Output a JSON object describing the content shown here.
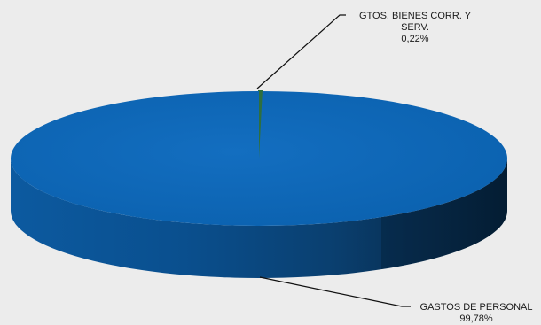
{
  "chart_data": {
    "type": "pie",
    "style": "3d",
    "slices": [
      {
        "name": "GASTOS DE PERSONAL",
        "percent": 99.78,
        "label_line1": "GASTOS DE PERSONAL",
        "label_line2": "99,78%",
        "color": "#0b64b1"
      },
      {
        "name": "GTOS. BIENES CORR. Y SERV.",
        "percent": 0.22,
        "label_line1": "GTOS. BIENES CORR. Y",
        "label_line2": "SERV.",
        "label_line3": "0,22%",
        "color": "#2f6f3e"
      }
    ],
    "legend": "none"
  }
}
